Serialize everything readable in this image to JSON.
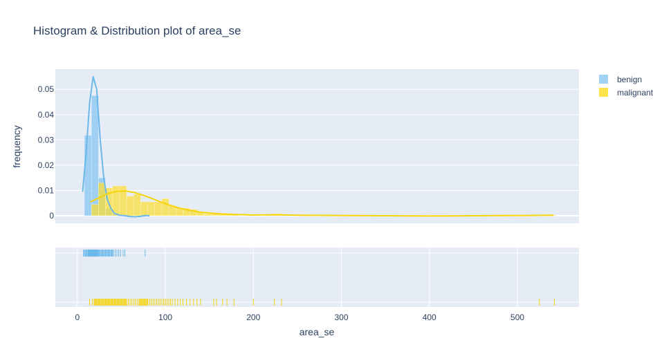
{
  "chart_data": {
    "type": "histogram",
    "title": "Histogram & Distribution plot of area_se",
    "xlabel": "area_se",
    "ylabel": "frequency",
    "xlim": [
      -25,
      570
    ],
    "ylim": [
      -0.003,
      0.058
    ],
    "x_ticks": [
      0,
      100,
      200,
      300,
      400,
      500
    ],
    "y_ticks": [
      0,
      0.01,
      0.02,
      0.03,
      0.04,
      0.05
    ],
    "y_tick_labels": [
      "0",
      "0.01",
      "0.02",
      "0.03",
      "0.04",
      "0.05"
    ],
    "legend_position": "top-right",
    "grid": true,
    "bin_width": 8,
    "series": [
      {
        "name": "benign",
        "color": "#7ac0f0",
        "kde_color": "#6ab8ea",
        "bins": [
          {
            "x0": 8,
            "y": 0.0318
          },
          {
            "x0": 16,
            "y": 0.0475
          },
          {
            "x0": 24,
            "y": 0.015
          },
          {
            "x0": 32,
            "y": 0.003
          },
          {
            "x0": 40,
            "y": 0.0009
          },
          {
            "x0": 48,
            "y": 0.0003
          },
          {
            "x0": 72,
            "y": 0.0002
          }
        ],
        "kde": [
          [
            6,
            0.0095
          ],
          [
            10,
            0.025
          ],
          [
            14,
            0.045
          ],
          [
            18,
            0.055
          ],
          [
            22,
            0.05
          ],
          [
            26,
            0.03
          ],
          [
            30,
            0.015
          ],
          [
            34,
            0.0065
          ],
          [
            38,
            0.003
          ],
          [
            42,
            0.001
          ],
          [
            48,
            0.0002
          ],
          [
            55,
            0.0
          ],
          [
            60,
            -0.0003
          ],
          [
            66,
            -0.0004
          ],
          [
            72,
            -0.0002
          ],
          [
            78,
            0.0001
          ],
          [
            82,
            0.0
          ]
        ],
        "rug": [
          7,
          8,
          9,
          10,
          11,
          12,
          12.5,
          13,
          13.5,
          14,
          14.5,
          15,
          15.5,
          16,
          16.5,
          17,
          17.5,
          18,
          18.5,
          19,
          19.5,
          20,
          20.5,
          21,
          21.5,
          22,
          22.5,
          23,
          23.5,
          24,
          25,
          26,
          27,
          28,
          29,
          30,
          31,
          32,
          33,
          34,
          35,
          36,
          37,
          38,
          39,
          40,
          41,
          43,
          45,
          47,
          49,
          52,
          54,
          77
        ]
      },
      {
        "name": "malignant",
        "color": "#ffde2e",
        "kde_color": "#f5d40a",
        "bins": [
          {
            "x0": 16,
            "y": 0.0045
          },
          {
            "x0": 24,
            "y": 0.013
          },
          {
            "x0": 32,
            "y": 0.011
          },
          {
            "x0": 40,
            "y": 0.0118
          },
          {
            "x0": 48,
            "y": 0.0118
          },
          {
            "x0": 56,
            "y": 0.0078
          },
          {
            "x0": 64,
            "y": 0.0085
          },
          {
            "x0": 72,
            "y": 0.0055
          },
          {
            "x0": 80,
            "y": 0.0055
          },
          {
            "x0": 88,
            "y": 0.0055
          },
          {
            "x0": 96,
            "y": 0.0068
          },
          {
            "x0": 104,
            "y": 0.004
          },
          {
            "x0": 112,
            "y": 0.0032
          },
          {
            "x0": 120,
            "y": 0.003
          },
          {
            "x0": 128,
            "y": 0.0025
          },
          {
            "x0": 136,
            "y": 0.0015
          },
          {
            "x0": 144,
            "y": 0.0008
          },
          {
            "x0": 152,
            "y": 0.0008
          },
          {
            "x0": 160,
            "y": 0.0006
          },
          {
            "x0": 168,
            "y": 0.0006
          },
          {
            "x0": 176,
            "y": 0.0004
          },
          {
            "x0": 192,
            "y": 0.0003
          },
          {
            "x0": 216,
            "y": 0.0003
          },
          {
            "x0": 224,
            "y": 0.0008
          },
          {
            "x0": 232,
            "y": 0.0003
          },
          {
            "x0": 520,
            "y": 0.0002
          },
          {
            "x0": 536,
            "y": 0.0003
          }
        ],
        "kde": [
          [
            15,
            0.0055
          ],
          [
            25,
            0.0072
          ],
          [
            35,
            0.0088
          ],
          [
            45,
            0.0097
          ],
          [
            55,
            0.0098
          ],
          [
            65,
            0.0092
          ],
          [
            75,
            0.0081
          ],
          [
            85,
            0.0068
          ],
          [
            95,
            0.0054
          ],
          [
            105,
            0.0042
          ],
          [
            115,
            0.0031
          ],
          [
            125,
            0.0023
          ],
          [
            140,
            0.0014
          ],
          [
            160,
            0.0008
          ],
          [
            180,
            0.0005
          ],
          [
            200,
            0.0003
          ],
          [
            225,
            0.0004
          ],
          [
            250,
            0.0002
          ],
          [
            300,
            0.0001
          ],
          [
            350,
            0.0
          ],
          [
            400,
            -0.0001
          ],
          [
            450,
            0.0
          ],
          [
            500,
            0.0001
          ],
          [
            541,
            0.0002
          ]
        ],
        "rug": [
          14,
          17,
          19,
          20,
          21,
          22,
          23,
          24,
          25,
          26,
          27,
          28,
          29,
          30,
          31,
          32,
          33,
          34,
          35,
          36,
          37,
          38,
          39,
          40,
          41,
          42,
          43,
          44,
          45,
          46,
          47,
          48,
          49,
          50,
          51,
          52,
          53,
          54,
          55,
          56,
          58,
          60,
          62,
          64,
          66,
          68,
          70,
          71,
          72,
          73,
          74,
          75,
          76,
          77,
          78,
          79,
          80,
          82,
          84,
          86,
          88,
          90,
          92,
          94,
          96,
          98,
          100,
          102,
          104,
          106,
          108,
          111,
          114,
          117,
          120,
          124,
          128,
          132,
          136,
          140,
          155,
          158,
          165,
          170,
          178,
          200,
          224,
          232,
          525,
          542
        ]
      }
    ]
  }
}
